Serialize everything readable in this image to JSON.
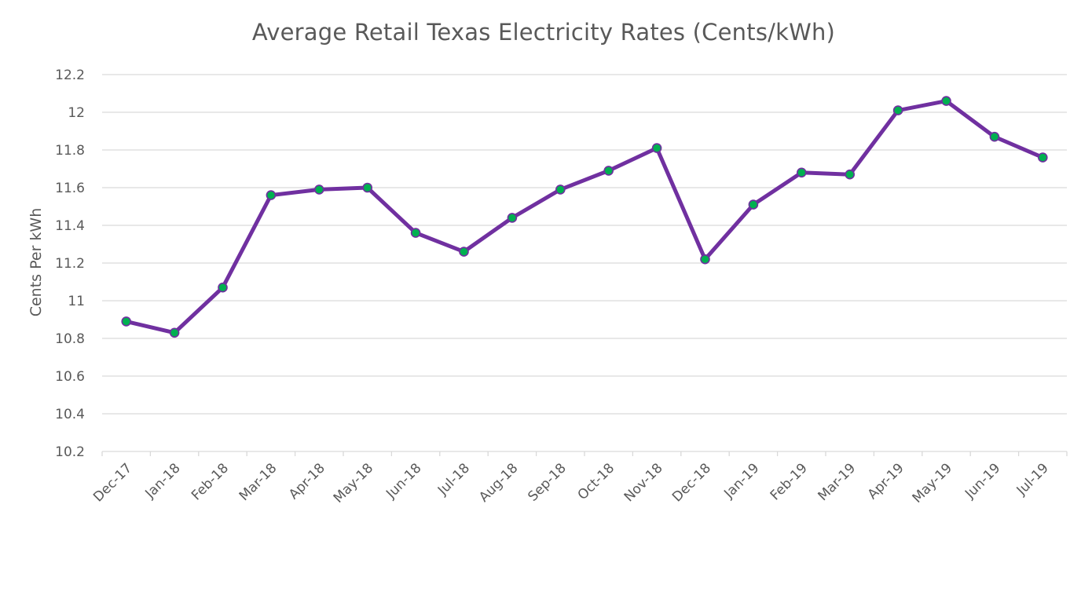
{
  "chart_data": {
    "type": "line",
    "title": "Average Retail Texas Electricity Rates (Cents/kWh)",
    "xlabel": "",
    "ylabel": "Cents Per kWh",
    "ylim": [
      10.2,
      12.2
    ],
    "ytick_step": 0.2,
    "yticks": [
      "10.2",
      "10.4",
      "10.6",
      "10.8",
      "11",
      "11.2",
      "11.4",
      "11.6",
      "11.8",
      "12",
      "12.2"
    ],
    "grid": "horizontal",
    "legend": "none",
    "categories": [
      "Dec-17",
      "Jan-18",
      "Feb-18",
      "Mar-18",
      "Apr-18",
      "May-18",
      "Jun-18",
      "Jul-18",
      "Aug-18",
      "Sep-18",
      "Oct-18",
      "Nov-18",
      "Dec-18",
      "Jan-19",
      "Feb-19",
      "Mar-19",
      "Apr-19",
      "May-19",
      "Jun-19",
      "Jul-19"
    ],
    "series": [
      {
        "values": [
          10.89,
          10.83,
          11.07,
          11.56,
          11.59,
          11.6,
          11.36,
          11.26,
          11.44,
          11.59,
          11.69,
          11.81,
          11.22,
          11.51,
          11.68,
          11.67,
          12.01,
          12.06,
          11.87,
          11.76
        ],
        "line_color": "#7030a0",
        "marker_color": "#00b050"
      }
    ]
  }
}
